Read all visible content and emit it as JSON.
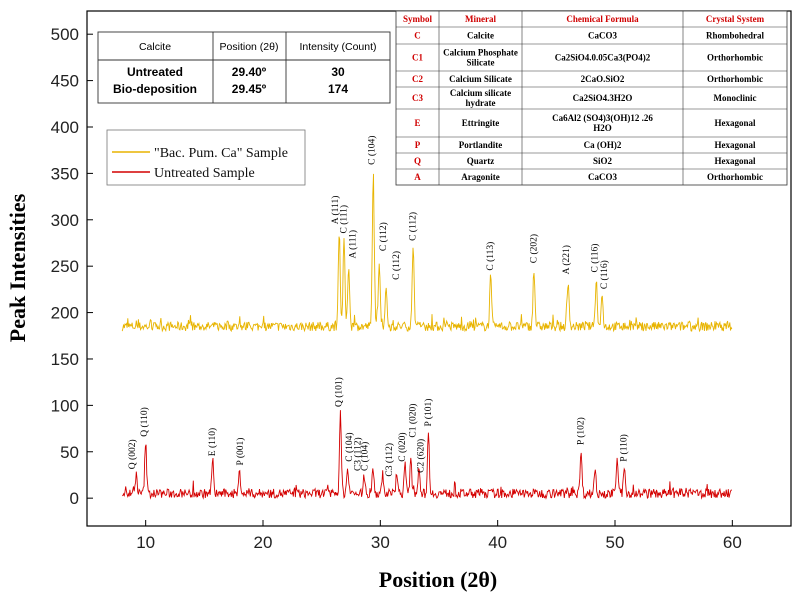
{
  "chart_data": {
    "type": "line",
    "xlabel": "Position (2θ)",
    "ylabel": "Peak Intensities",
    "xlim": [
      5,
      65
    ],
    "ylim": [
      -30,
      525
    ],
    "x_ticks": [
      10,
      20,
      30,
      40,
      50,
      60
    ],
    "y_ticks": [
      0,
      50,
      100,
      150,
      200,
      250,
      300,
      350,
      400,
      450,
      500
    ],
    "grid": false,
    "legend_position": "upper-left",
    "series": [
      {
        "name": "\"Bac. Pum. Ca\" Sample",
        "color": "#e8b400",
        "baseline": 185,
        "x_range": [
          8,
          60
        ],
        "peaks": [
          {
            "x": 26.5,
            "y": 290
          },
          {
            "x": 26.9,
            "y": 278
          },
          {
            "x": 27.3,
            "y": 252
          },
          {
            "x": 29.4,
            "y": 352
          },
          {
            "x": 29.9,
            "y": 257
          },
          {
            "x": 30.5,
            "y": 226
          },
          {
            "x": 32.8,
            "y": 270
          },
          {
            "x": 39.4,
            "y": 238
          },
          {
            "x": 43.1,
            "y": 245
          },
          {
            "x": 46.0,
            "y": 233
          },
          {
            "x": 48.4,
            "y": 236
          },
          {
            "x": 48.9,
            "y": 218
          }
        ]
      },
      {
        "name": "Untreated Sample",
        "color": "#d40000",
        "baseline": 5,
        "x_range": [
          8,
          60
        ],
        "peaks": [
          {
            "x": 9.2,
            "y": 24
          },
          {
            "x": 10.0,
            "y": 60
          },
          {
            "x": 15.7,
            "y": 38
          },
          {
            "x": 18.0,
            "y": 28
          },
          {
            "x": 26.6,
            "y": 90
          },
          {
            "x": 27.2,
            "y": 32
          },
          {
            "x": 28.6,
            "y": 22
          },
          {
            "x": 29.4,
            "y": 30
          },
          {
            "x": 30.2,
            "y": 20
          },
          {
            "x": 31.4,
            "y": 28
          },
          {
            "x": 32.1,
            "y": 36
          },
          {
            "x": 32.6,
            "y": 40
          },
          {
            "x": 33.3,
            "y": 35
          },
          {
            "x": 34.1,
            "y": 70
          },
          {
            "x": 47.1,
            "y": 50
          },
          {
            "x": 48.3,
            "y": 32
          },
          {
            "x": 50.2,
            "y": 40
          },
          {
            "x": 50.8,
            "y": 32
          }
        ]
      }
    ],
    "annotations": [
      {
        "text": "A (111)",
        "x": 26.4,
        "y": 292
      },
      {
        "text": "C (111)",
        "x": 27.1,
        "y": 282
      },
      {
        "text": "A (111)",
        "x": 27.9,
        "y": 255
      },
      {
        "text": "C (104)",
        "x": 29.5,
        "y": 356
      },
      {
        "text": "C (112)",
        "x": 30.5,
        "y": 263
      },
      {
        "text": "C (112)",
        "x": 31.6,
        "y": 232
      },
      {
        "text": "C (112)",
        "x": 33.0,
        "y": 274
      },
      {
        "text": "C (113)",
        "x": 39.6,
        "y": 242
      },
      {
        "text": "C (202)",
        "x": 43.3,
        "y": 250
      },
      {
        "text": "A (221)",
        "x": 46.1,
        "y": 238
      },
      {
        "text": "C (116)",
        "x": 48.5,
        "y": 240
      },
      {
        "text": "C (116)",
        "x": 49.3,
        "y": 222
      },
      {
        "text": "Q (002)",
        "x": 9.1,
        "y": 28
      },
      {
        "text": "Q (110)",
        "x": 10.1,
        "y": 63
      },
      {
        "text": "E (110)",
        "x": 15.9,
        "y": 42
      },
      {
        "text": "P (001)",
        "x": 18.3,
        "y": 32
      },
      {
        "text": "Q (101)",
        "x": 26.7,
        "y": 95
      },
      {
        "text": "C (104)",
        "x": 27.6,
        "y": 36
      },
      {
        "text": "C3 (112)",
        "x": 28.3,
        "y": 26
      },
      {
        "text": "C (104)",
        "x": 28.9,
        "y": 26
      },
      {
        "text": "C3 (112)",
        "x": 31.0,
        "y": 20
      },
      {
        "text": "C (020)",
        "x": 32.1,
        "y": 36
      },
      {
        "text": "C1 (020)",
        "x": 33.0,
        "y": 62
      },
      {
        "text": "C2 (620)",
        "x": 33.7,
        "y": 24
      },
      {
        "text": "P (101)",
        "x": 34.3,
        "y": 74
      },
      {
        "text": "P (102)",
        "x": 47.3,
        "y": 54
      },
      {
        "text": "P (110)",
        "x": 51.0,
        "y": 36
      }
    ]
  },
  "table_position": {
    "headers": [
      "Calcite",
      "Position (2θ)",
      "Intensity (Count)"
    ],
    "rows": [
      [
        "Untreated",
        "29.40º",
        "30"
      ],
      [
        "Bio-deposition",
        "29.45º",
        "174"
      ]
    ]
  },
  "table_minerals": {
    "headers": [
      "Symbol",
      "Mineral",
      "Chemical Formula",
      "Crystal System"
    ],
    "rows": [
      [
        "C",
        "Calcite",
        "CaCO3",
        "Rhombohedral"
      ],
      [
        "C1",
        "Calcium Phosphate|Silicate",
        "Ca2SiO4.0.05Ca3(PO4)2",
        "Orthorhombic"
      ],
      [
        "C2",
        "Calcium Silicate",
        "2CaO.SiO2",
        "Orthorhombic"
      ],
      [
        "C3",
        "Calcium silicate|hydrate",
        "Ca2SiO4.3H2O",
        "Monoclinic"
      ],
      [
        "E",
        "Ettringite",
        "Ca6Al2 (SO4)3(OH)12 .26|H2O",
        "Hexagonal"
      ],
      [
        "P",
        "Portlandite",
        "Ca (OH)2",
        "Hexagonal"
      ],
      [
        "Q",
        "Quartz",
        "SiO2",
        "Hexagonal"
      ],
      [
        "A",
        "Aragonite",
        "CaCO3",
        "Orthorhombic"
      ]
    ]
  }
}
